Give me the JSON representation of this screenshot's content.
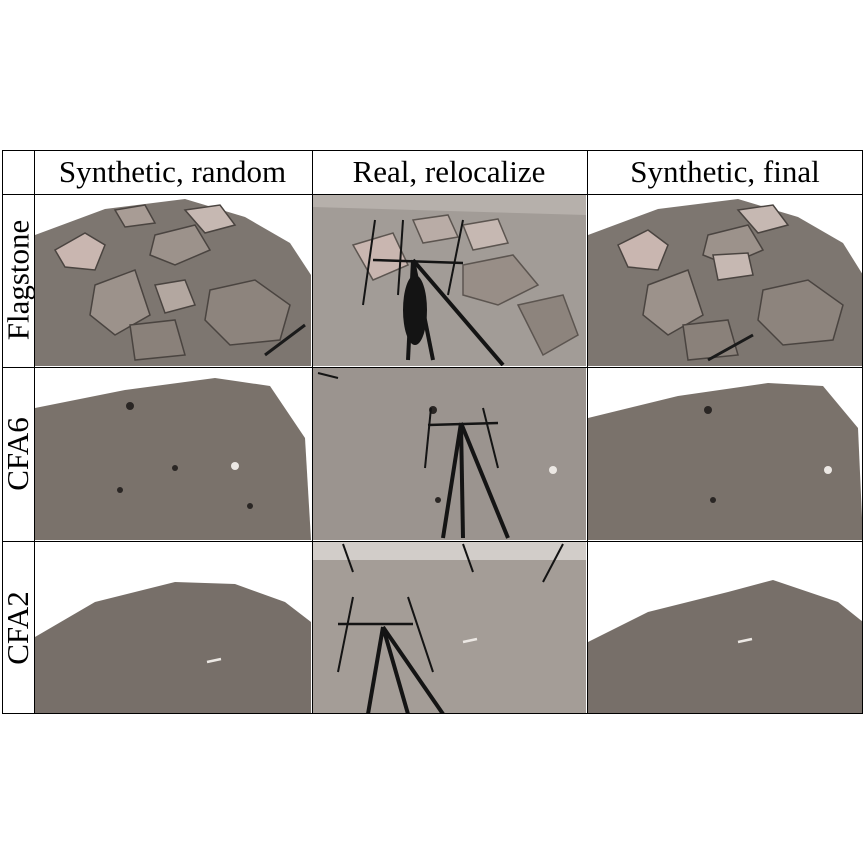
{
  "columns": [
    "Synthetic, random",
    "Real, relocalize",
    "Synthetic, final"
  ],
  "rows": [
    "Flagstone",
    "CFA6",
    "CFA2"
  ],
  "colors": {
    "terrain": "#7d7670",
    "terrain_dark": "#5f5853",
    "flagstone": "#9c928b",
    "real_ground": "#a29c97",
    "sky": "#ffffff",
    "tripod": "#141414"
  }
}
